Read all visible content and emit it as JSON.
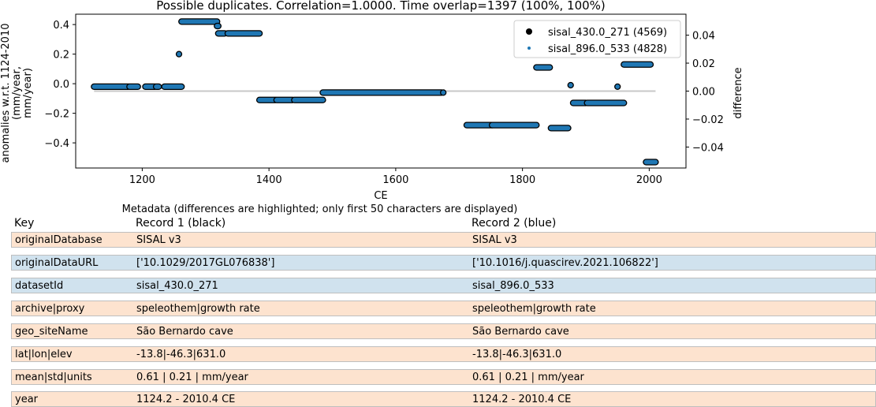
{
  "chart_data": {
    "type": "scatter",
    "title": "Possible duplicates. Correlation=1.0000. Time overlap=1397 (100%, 100%)",
    "xlabel": "CE",
    "ylabel": "anomalies w.r.t. 1124-2010\n(mm/year,\nmm/year)",
    "ylabel_right": "difference",
    "xlim": [
      1095,
      2058
    ],
    "ylim": [
      -0.57,
      0.47
    ],
    "ylim_right": [
      -0.055,
      0.055
    ],
    "x_ticks": [
      1200,
      1400,
      1600,
      1800,
      2000
    ],
    "y_ticks": [
      0.4,
      0.2,
      0.0,
      -0.2,
      -0.4
    ],
    "y_ticks_right": [
      0.04,
      0.02,
      0.0,
      -0.02,
      -0.04
    ],
    "y_tick_labels_right": [
      "0.04",
      "0.02",
      "0.00",
      "−0.02",
      "−0.04"
    ],
    "legend": "top-right",
    "grid": false,
    "colors": {
      "record1": "#000000",
      "record2": "#1f77b4",
      "difference": "#c8c8c8"
    },
    "segments": [
      {
        "x": [
          1124,
          1178
        ],
        "y": -0.02
      },
      {
        "x": [
          1180,
          1193
        ],
        "y": -0.02
      },
      {
        "x": [
          1205,
          1220
        ],
        "y": -0.02
      },
      {
        "x": [
          1222,
          1226
        ],
        "y": -0.02
      },
      {
        "x": [
          1235,
          1262
        ],
        "y": -0.02
      },
      {
        "x": [
          1262,
          1318
        ],
        "y": 0.42
      },
      {
        "x": [
          1318,
          1320
        ],
        "y": 0.39
      },
      {
        "x": [
          1320,
          1330
        ],
        "y": 0.34
      },
      {
        "x": [
          1335,
          1385
        ],
        "y": 0.34
      },
      {
        "x": [
          1385,
          1410
        ],
        "y": -0.11
      },
      {
        "x": [
          1412,
          1437
        ],
        "y": -0.11
      },
      {
        "x": [
          1440,
          1485
        ],
        "y": -0.11
      },
      {
        "x": [
          1485,
          1672
        ],
        "y": -0.06
      },
      {
        "x": [
          1712,
          1752
        ],
        "y": -0.28
      },
      {
        "x": [
          1752,
          1822
        ],
        "y": -0.28
      },
      {
        "x": [
          1822,
          1843
        ],
        "y": 0.11
      },
      {
        "x": [
          1845,
          1872
        ],
        "y": -0.3
      },
      {
        "x": [
          1880,
          1900
        ],
        "y": -0.13
      },
      {
        "x": [
          1902,
          1960
        ],
        "y": -0.13
      },
      {
        "x": [
          1960,
          2002
        ],
        "y": 0.13
      },
      {
        "x": [
          1995,
          2010
        ],
        "y": -0.53
      }
    ],
    "single_points": [
      {
        "x": 1258,
        "y": 0.2
      },
      {
        "x": 1675,
        "y": -0.06
      },
      {
        "x": 1876,
        "y": -0.01
      },
      {
        "x": 1950,
        "y": -0.02
      }
    ],
    "difference_line": {
      "x": [
        1124,
        2010
      ],
      "y": 0.0
    },
    "series": [
      {
        "name": "sisal_430.0_271 (4569)",
        "marker": "filled-circle"
      },
      {
        "name": "sisal_896.0_533 (4828)",
        "marker": "small-dot"
      }
    ]
  },
  "metadata_table": {
    "title": "Metadata (differences are highlighted; only first 50 characters are displayed)",
    "headers": {
      "key": "Key",
      "record1": "Record 1 (black)",
      "record2": "Record 2 (blue)"
    },
    "row_colors": {
      "same": "#fde3cf",
      "diff": "#d0e2ee"
    },
    "rows": [
      {
        "key": "originalDatabase",
        "record1": "SISAL v3",
        "record2": "SISAL v3",
        "differs": false
      },
      {
        "key": "originalDataURL",
        "record1": "['10.1029/2017GL076838']",
        "record2": "['10.1016/j.quascirev.2021.106822']",
        "differs": true
      },
      {
        "key": "datasetId",
        "record1": "sisal_430.0_271",
        "record2": "sisal_896.0_533",
        "differs": true
      },
      {
        "key": "archive|proxy",
        "record1": "speleothem|growth rate",
        "record2": "speleothem|growth rate",
        "differs": false
      },
      {
        "key": "geo_siteName",
        "record1": "São Bernardo cave",
        "record2": "São Bernardo cave",
        "differs": false
      },
      {
        "key": "lat|lon|elev",
        "record1": "-13.8|-46.3|631.0",
        "record2": "-13.8|-46.3|631.0",
        "differs": false
      },
      {
        "key": "mean|std|units",
        "record1": "0.61 | 0.21 | mm/year",
        "record2": "0.61 | 0.21 | mm/year",
        "differs": false
      },
      {
        "key": "year",
        "record1": "1124.2 - 2010.4 CE",
        "record2": "1124.2 - 2010.4 CE",
        "differs": false
      }
    ]
  }
}
